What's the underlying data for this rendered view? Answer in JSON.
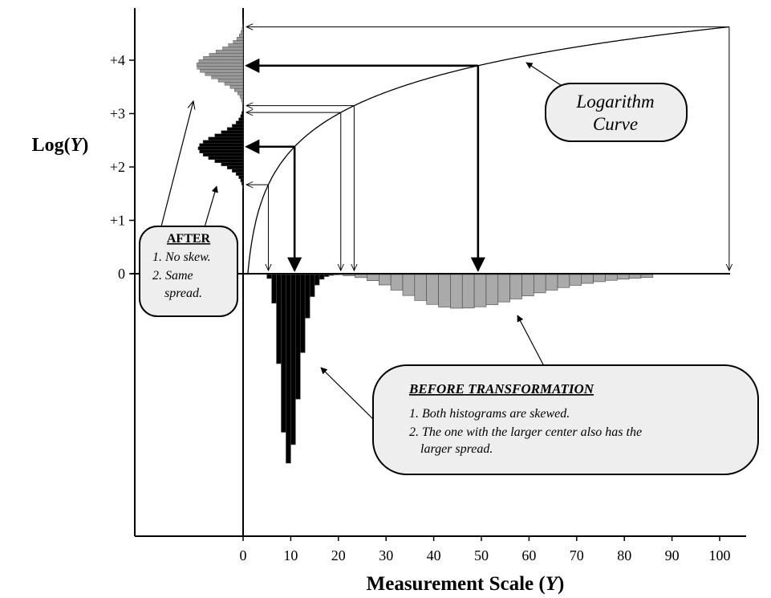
{
  "y_axis": {
    "label_prefix": "Log(",
    "label_var": "Y",
    "label_suffix": ")",
    "ticks": [
      "0",
      "+1",
      "+2",
      "+3",
      "+4"
    ]
  },
  "x_axis": {
    "label_prefix": "Measurement Scale (",
    "label_var": "Y",
    "label_suffix": ")",
    "ticks": [
      "0",
      "10",
      "20",
      "30",
      "40",
      "50",
      "60",
      "70",
      "80",
      "90",
      "100"
    ]
  },
  "callouts": {
    "curve": {
      "line1": "Logarithm",
      "line2": "Curve"
    },
    "after": {
      "title": "AFTER",
      "items": [
        "1. No skew.",
        "2. Same",
        "spread."
      ]
    },
    "before": {
      "title": "BEFORE TRANSFORMATION",
      "items": [
        "1. Both histograms are skewed.",
        "2. The one with the larger center also has the",
        "larger spread."
      ]
    }
  }
}
